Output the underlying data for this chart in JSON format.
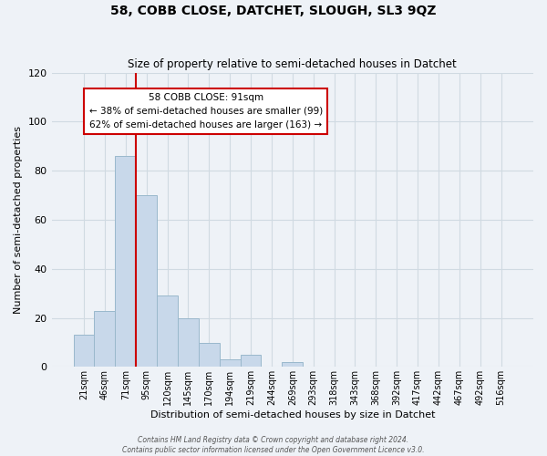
{
  "title": "58, COBB CLOSE, DATCHET, SLOUGH, SL3 9QZ",
  "subtitle": "Size of property relative to semi-detached houses in Datchet",
  "xlabel": "Distribution of semi-detached houses by size in Datchet",
  "ylabel": "Number of semi-detached properties",
  "bar_labels": [
    "21sqm",
    "46sqm",
    "71sqm",
    "95sqm",
    "120sqm",
    "145sqm",
    "170sqm",
    "194sqm",
    "219sqm",
    "244sqm",
    "269sqm",
    "293sqm",
    "318sqm",
    "343sqm",
    "368sqm",
    "392sqm",
    "417sqm",
    "442sqm",
    "467sqm",
    "492sqm",
    "516sqm"
  ],
  "bar_values": [
    13,
    23,
    86,
    70,
    29,
    20,
    10,
    3,
    5,
    0,
    2,
    0,
    0,
    0,
    0,
    0,
    0,
    0,
    0,
    0,
    0
  ],
  "bar_color": "#c8d8ea",
  "bar_edge_color": "#9ab8cc",
  "grid_color": "#d0dae2",
  "background_color": "#eef2f7",
  "red_line_x": 2.5,
  "property_label": "58 COBB CLOSE: 91sqm",
  "pct_smaller": 38,
  "pct_larger": 62,
  "count_smaller": 99,
  "count_larger": 163,
  "annotation_box_color": "#ffffff",
  "annotation_box_edge": "#cc0000",
  "red_line_color": "#cc0000",
  "ylim": [
    0,
    120
  ],
  "yticks": [
    0,
    20,
    40,
    60,
    80,
    100,
    120
  ],
  "footer1": "Contains HM Land Registry data © Crown copyright and database right 2024.",
  "footer2": "Contains public sector information licensed under the Open Government Licence v3.0."
}
